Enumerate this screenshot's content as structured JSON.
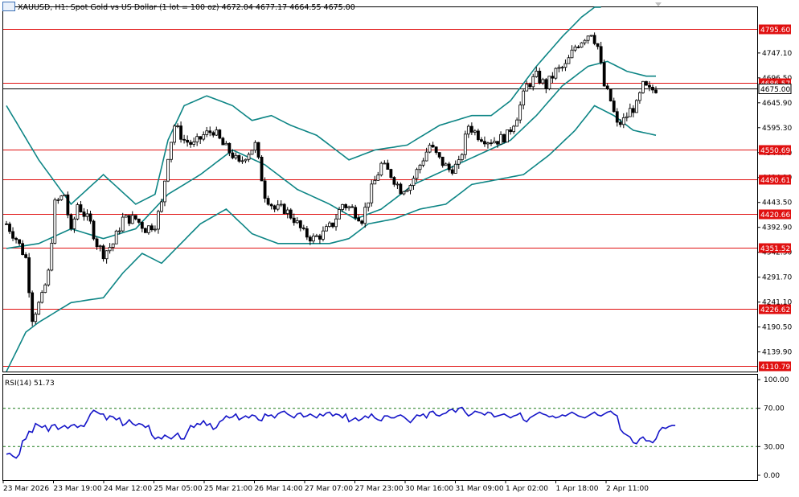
{
  "header": {
    "symbol": "XAUUSD",
    "timeframe": "H1",
    "description": "Spot Gold vs US Dollar (1 lot = 100 oz)",
    "ohlc": "4672.04 4677.17 4664.55 4675.00"
  },
  "colors": {
    "candle": "#000000",
    "bollinger": "#0d8585",
    "level": "#e01010",
    "rsi": "#1515c8",
    "rsi_levels": "#1a7a1a",
    "frame": "#000000",
    "background": "#ffffff"
  },
  "chart_data": [
    {
      "type": "candlestick",
      "title": "XAUUSD, H1: Spot Gold vs US Dollar (1 lot = 100 oz)",
      "ylim": [
        4100,
        4840
      ],
      "price_ticks": [
        "4747.10",
        "4696.50",
        "4645.90",
        "4595.30",
        "4544.70",
        "4494.10",
        "4443.50",
        "4392.90",
        "4342.30",
        "4291.70",
        "4241.10",
        "4190.50",
        "4139.90"
      ],
      "time_labels": [
        "23 Mar 2026",
        "23 Mar 19:00",
        "24 Mar 12:00",
        "25 Mar 05:00",
        "25 Mar 21:00",
        "26 Mar 14:00",
        "27 Mar 07:00",
        "27 Mar 23:00",
        "30 Mar 16:00",
        "31 Mar 09:00",
        "1 Apr 02:00",
        "1 Apr 18:00",
        "2 Apr 11:00"
      ],
      "levels": [
        4795.6,
        4686.57,
        4550.69,
        4490.61,
        4420.66,
        4351.52,
        4226.62,
        4110.79
      ],
      "level_labels": [
        "4795.60",
        "4686.57",
        "4550.69",
        "4490.61",
        "4420.66",
        "4351.52",
        "4226.62",
        "4110.79"
      ],
      "current_price": 4675.0,
      "current_price_label": "4675.00",
      "close_path": [
        [
          0,
          4400
        ],
        [
          3,
          4370
        ],
        [
          6,
          4330
        ],
        [
          8,
          4210
        ],
        [
          11,
          4250
        ],
        [
          13,
          4300
        ],
        [
          15,
          4440
        ],
        [
          18,
          4460
        ],
        [
          20,
          4380
        ],
        [
          22,
          4440
        ],
        [
          24,
          4420
        ],
        [
          26,
          4400
        ],
        [
          28,
          4360
        ],
        [
          30,
          4340
        ],
        [
          33,
          4360
        ],
        [
          36,
          4410
        ],
        [
          40,
          4410
        ],
        [
          43,
          4390
        ],
        [
          46,
          4400
        ],
        [
          48,
          4440
        ],
        [
          50,
          4540
        ],
        [
          52,
          4600
        ],
        [
          55,
          4570
        ],
        [
          58,
          4560
        ],
        [
          61,
          4580
        ],
        [
          64,
          4590
        ],
        [
          67,
          4560
        ],
        [
          70,
          4540
        ],
        [
          72,
          4520
        ],
        [
          74,
          4540
        ],
        [
          77,
          4560
        ],
        [
          80,
          4460
        ],
        [
          83,
          4430
        ],
        [
          86,
          4430
        ],
        [
          89,
          4410
        ],
        [
          92,
          4380
        ],
        [
          95,
          4370
        ],
        [
          98,
          4380
        ],
        [
          101,
          4400
        ],
        [
          104,
          4440
        ],
        [
          107,
          4430
        ],
        [
          110,
          4410
        ],
        [
          113,
          4470
        ],
        [
          116,
          4520
        ],
        [
          119,
          4500
        ],
        [
          122,
          4470
        ],
        [
          125,
          4480
        ],
        [
          128,
          4520
        ],
        [
          131,
          4560
        ],
        [
          134,
          4530
        ],
        [
          137,
          4510
        ],
        [
          140,
          4520
        ],
        [
          143,
          4600
        ],
        [
          146,
          4580
        ],
        [
          149,
          4570
        ],
        [
          152,
          4570
        ],
        [
          155,
          4580
        ],
        [
          158,
          4620
        ],
        [
          161,
          4680
        ],
        [
          164,
          4700
        ],
        [
          167,
          4680
        ],
        [
          170,
          4710
        ],
        [
          173,
          4720
        ],
        [
          176,
          4760
        ],
        [
          179,
          4780
        ],
        [
          181,
          4790
        ],
        [
          183,
          4760
        ],
        [
          185,
          4680
        ],
        [
          187,
          4650
        ],
        [
          189,
          4600
        ],
        [
          191,
          4610
        ],
        [
          193,
          4630
        ],
        [
          195,
          4640
        ],
        [
          197,
          4680
        ],
        [
          199,
          4670
        ],
        [
          201,
          4675
        ]
      ],
      "bollinger_upper": [
        [
          0,
          4640
        ],
        [
          10,
          4530
        ],
        [
          20,
          4440
        ],
        [
          30,
          4500
        ],
        [
          40,
          4440
        ],
        [
          46,
          4460
        ],
        [
          50,
          4570
        ],
        [
          55,
          4640
        ],
        [
          62,
          4660
        ],
        [
          70,
          4640
        ],
        [
          76,
          4610
        ],
        [
          82,
          4620
        ],
        [
          88,
          4600
        ],
        [
          96,
          4580
        ],
        [
          106,
          4530
        ],
        [
          114,
          4550
        ],
        [
          124,
          4560
        ],
        [
          134,
          4600
        ],
        [
          144,
          4620
        ],
        [
          150,
          4620
        ],
        [
          156,
          4650
        ],
        [
          164,
          4720
        ],
        [
          172,
          4780
        ],
        [
          178,
          4820
        ],
        [
          184,
          4850
        ]
      ],
      "bollinger_middle": [
        [
          0,
          4350
        ],
        [
          10,
          4360
        ],
        [
          20,
          4390
        ],
        [
          30,
          4370
        ],
        [
          40,
          4390
        ],
        [
          50,
          4460
        ],
        [
          60,
          4500
        ],
        [
          70,
          4550
        ],
        [
          80,
          4520
        ],
        [
          90,
          4470
        ],
        [
          100,
          4440
        ],
        [
          108,
          4410
        ],
        [
          116,
          4430
        ],
        [
          126,
          4480
        ],
        [
          136,
          4510
        ],
        [
          146,
          4540
        ],
        [
          156,
          4570
        ],
        [
          164,
          4620
        ],
        [
          172,
          4680
        ],
        [
          180,
          4720
        ],
        [
          186,
          4730
        ],
        [
          192,
          4710
        ],
        [
          198,
          4700
        ],
        [
          201,
          4700
        ]
      ],
      "bollinger_lower": [
        [
          0,
          4100
        ],
        [
          6,
          4180
        ],
        [
          10,
          4200
        ],
        [
          20,
          4240
        ],
        [
          30,
          4250
        ],
        [
          36,
          4300
        ],
        [
          42,
          4340
        ],
        [
          48,
          4320
        ],
        [
          54,
          4360
        ],
        [
          60,
          4400
        ],
        [
          68,
          4430
        ],
        [
          76,
          4380
        ],
        [
          84,
          4360
        ],
        [
          92,
          4360
        ],
        [
          100,
          4360
        ],
        [
          106,
          4370
        ],
        [
          112,
          4400
        ],
        [
          120,
          4410
        ],
        [
          128,
          4430
        ],
        [
          136,
          4440
        ],
        [
          144,
          4480
        ],
        [
          152,
          4490
        ],
        [
          160,
          4500
        ],
        [
          168,
          4540
        ],
        [
          176,
          4590
        ],
        [
          182,
          4640
        ],
        [
          188,
          4620
        ],
        [
          194,
          4590
        ],
        [
          201,
          4580
        ]
      ]
    },
    {
      "type": "line",
      "title": "RSI(14) 51.73",
      "name": "RSI(14)",
      "value_label": "51.73",
      "ylim": [
        0,
        100
      ],
      "tick_labels": [
        "100.00",
        "70.00",
        "30.00",
        "0.00"
      ],
      "level_lines": [
        70,
        30
      ],
      "values": [
        22,
        23,
        20,
        18,
        22,
        36,
        38,
        46,
        45,
        54,
        52,
        50,
        52,
        46,
        52,
        53,
        48,
        50,
        52,
        49,
        52,
        53,
        50,
        52,
        51,
        57,
        64,
        68,
        66,
        64,
        64,
        58,
        62,
        61,
        58,
        60,
        52,
        54,
        58,
        54,
        52,
        54,
        53,
        50,
        52,
        42,
        38,
        40,
        38,
        42,
        40,
        38,
        41,
        44,
        38,
        38,
        45,
        52,
        50,
        54,
        53,
        57,
        52,
        54,
        48,
        50,
        56,
        58,
        62,
        60,
        61,
        64,
        58,
        60,
        62,
        60,
        63,
        62,
        58,
        57,
        64,
        62,
        63,
        60,
        64,
        66,
        67,
        64,
        62,
        60,
        64,
        65,
        61,
        62,
        64,
        62,
        60,
        64,
        62,
        65,
        66,
        62,
        64,
        63,
        60,
        64,
        56,
        58,
        60,
        57,
        59,
        62,
        60,
        64,
        60,
        58,
        57,
        62,
        62,
        60,
        60,
        62,
        63,
        61,
        58,
        55,
        59,
        63,
        62,
        64,
        60,
        66,
        67,
        63,
        62,
        64,
        65,
        68,
        69,
        66,
        70,
        71,
        66,
        62,
        64,
        67,
        66,
        65,
        63,
        66,
        65,
        61,
        62,
        63,
        64,
        62,
        60,
        62,
        63,
        65,
        58,
        56,
        60,
        62,
        64,
        66,
        64,
        63,
        61,
        62,
        60,
        61,
        63,
        62,
        64,
        66,
        64,
        62,
        61,
        60,
        62,
        64,
        66,
        63,
        62,
        64,
        66,
        67,
        64,
        62,
        48,
        44,
        42,
        40,
        34,
        33,
        38,
        40,
        36,
        36,
        34,
        38,
        46,
        50,
        49,
        51,
        52,
        52
      ]
    }
  ]
}
